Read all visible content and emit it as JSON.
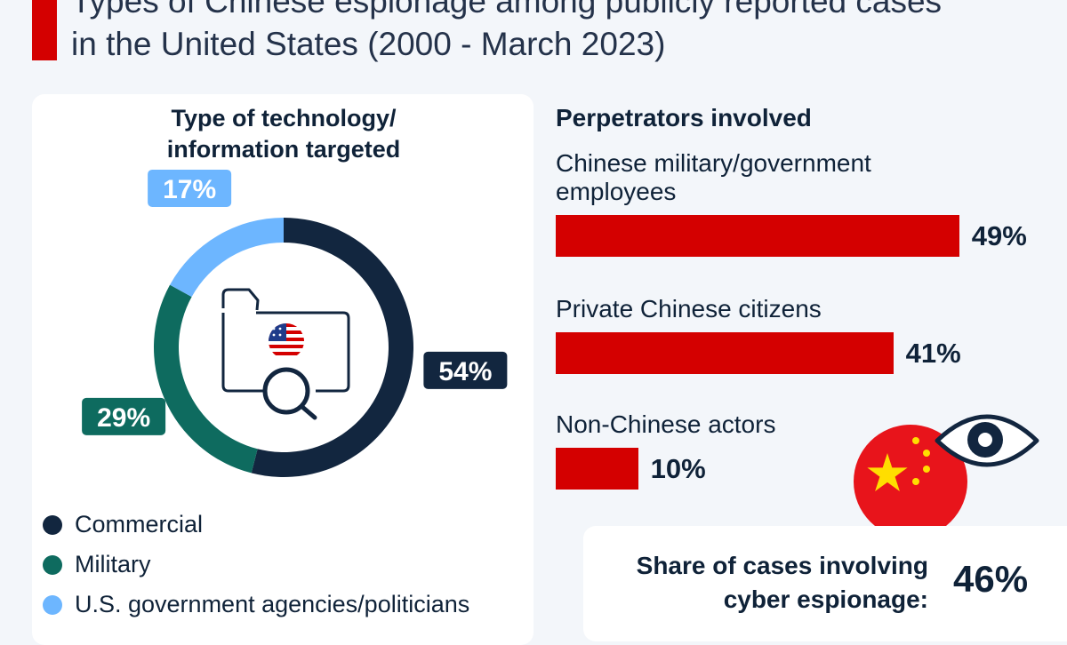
{
  "title": {
    "line1": "Types of Chinese espionage among publicly reported cases",
    "line2": "in the United States (2000 - March 2023)"
  },
  "colors": {
    "accent": "#d40000",
    "commercial": "#12263f",
    "military": "#0e6b5f",
    "government": "#6db6ff",
    "text": "#0f2238"
  },
  "chart_data": [
    {
      "type": "pie",
      "variant": "donut",
      "title_lines": [
        "Type of technology/",
        "information targeted"
      ],
      "labels": [
        "Commercial",
        "Military",
        "U.S. government agencies/politicians"
      ],
      "values": [
        54,
        29,
        17
      ],
      "value_labels": [
        "54%",
        "29%",
        "17%"
      ],
      "center_icons": [
        "folder-icon",
        "us-flag-icon",
        "magnifier-icon"
      ],
      "legend_placement": "bottom-left"
    },
    {
      "type": "bar",
      "orientation": "horizontal",
      "title": "Perpetrators involved",
      "categories": [
        [
          "Chinese military/government",
          "employees"
        ],
        [
          "Private Chinese citizens"
        ],
        [
          "Non-Chinese actors"
        ]
      ],
      "values": [
        49,
        41,
        10
      ],
      "value_labels": [
        "49%",
        "41%",
        "10%"
      ],
      "unit": "%"
    }
  ],
  "share": {
    "label_lines": [
      "Share of cases involving",
      "cyber espionage:"
    ],
    "value": "46%",
    "icons": [
      "china-flag-icon",
      "eye-icon"
    ]
  }
}
